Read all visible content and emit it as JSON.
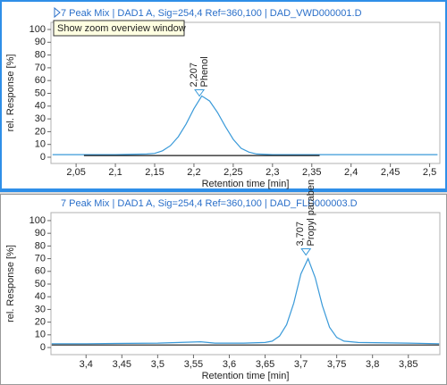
{
  "tooltip": "Show zoom overview window",
  "chart_data": [
    {
      "type": "line",
      "title": "7 Peak Mix | DAD1 A, Sig=254,4 Ref=360,100 | DAD_VWD000001.D",
      "x_label": "Retention time [min]",
      "y_label": "rel. Response [%]",
      "xlim": [
        2.018,
        2.513
      ],
      "ylim": [
        -4.9,
        105.6
      ],
      "xticks": [
        {
          "value": 2.05,
          "label": "2,05"
        },
        {
          "value": 2.1,
          "label": "2,1"
        },
        {
          "value": 2.15,
          "label": "2,15"
        },
        {
          "value": 2.2,
          "label": "2,2"
        },
        {
          "value": 2.25,
          "label": "2,25"
        },
        {
          "value": 2.3,
          "label": "2,3"
        },
        {
          "value": 2.35,
          "label": "2,35"
        },
        {
          "value": 2.4,
          "label": "2,4"
        },
        {
          "value": 2.45,
          "label": "2,45"
        },
        {
          "value": 2.5,
          "label": "2,5"
        }
      ],
      "yticks": [
        0,
        10,
        20,
        30,
        40,
        50,
        60,
        70,
        80,
        90,
        100
      ],
      "series": [
        {
          "color": "#3a9ad9",
          "x": [
            2.02,
            2.06,
            2.1,
            2.14,
            2.15,
            2.16,
            2.17,
            2.18,
            2.19,
            2.2,
            2.21,
            2.22,
            2.23,
            2.24,
            2.25,
            2.26,
            2.27,
            2.28,
            2.3,
            2.4,
            2.51
          ],
          "values": [
            2,
            2,
            2,
            2.5,
            3,
            5,
            9,
            16,
            26,
            38,
            48,
            44,
            35,
            24,
            14,
            7,
            4,
            2.5,
            2,
            2,
            2
          ]
        },
        {
          "color": "#1a1a1a",
          "x": [
            2.06,
            2.36
          ],
          "values": [
            1.3,
            1.3
          ]
        }
      ],
      "peaks": [
        {
          "x": {
            "value": 2.207,
            "label": "2,207"
          },
          "y": 50,
          "label": "Phenol"
        }
      ]
    },
    {
      "type": "line",
      "title": "7 Peak Mix | DAD1 A, Sig=254,4 Ref=360,100 | DAD_FLD000003.D",
      "x_label": "Retention time [min]",
      "y_label": "rel. Response [%]",
      "xlim": [
        3.351,
        3.894
      ],
      "ylim": [
        -5.6,
        106.3
      ],
      "xticks": [
        {
          "value": 3.4,
          "label": "3,4"
        },
        {
          "value": 3.45,
          "label": "3,45"
        },
        {
          "value": 3.5,
          "label": "3,5"
        },
        {
          "value": 3.55,
          "label": "3,55"
        },
        {
          "value": 3.6,
          "label": "3,6"
        },
        {
          "value": 3.65,
          "label": "3,65"
        },
        {
          "value": 3.7,
          "label": "3,7"
        },
        {
          "value": 3.75,
          "label": "3,75"
        },
        {
          "value": 3.8,
          "label": "3,8"
        },
        {
          "value": 3.85,
          "label": "3,85"
        }
      ],
      "yticks": [
        0,
        10,
        20,
        30,
        40,
        50,
        60,
        70,
        80,
        90,
        100
      ],
      "series": [
        {
          "color": "#3a9ad9",
          "x": [
            3.352,
            3.4,
            3.5,
            3.56,
            3.58,
            3.62,
            3.65,
            3.66,
            3.67,
            3.68,
            3.69,
            3.7,
            3.71,
            3.72,
            3.73,
            3.74,
            3.75,
            3.76,
            3.78,
            3.85,
            3.893
          ],
          "values": [
            3,
            3,
            3.5,
            4.5,
            3.5,
            3.5,
            4,
            5,
            9,
            18,
            35,
            58,
            70,
            55,
            33,
            16,
            8,
            5,
            4,
            3.5,
            3
          ]
        },
        {
          "color": "#1a1a1a",
          "x": [
            3.352,
            3.893
          ],
          "values": [
            2,
            2
          ]
        }
      ],
      "peaks": [
        {
          "x": {
            "value": 3.707,
            "label": "3,707"
          },
          "y": 75,
          "label": "Propyl paraben"
        }
      ]
    }
  ]
}
